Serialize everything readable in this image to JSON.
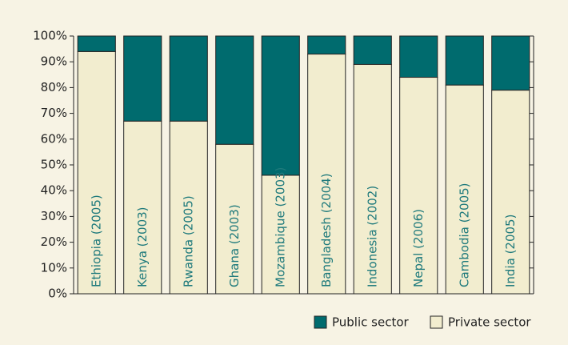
{
  "chart_data": {
    "type": "stacked_bar",
    "categories": [
      "Ethiopia (2005)",
      "Kenya (2003)",
      "Rwanda (2005)",
      "Ghana (2003)",
      "Mozambique (2003)",
      "Bangladesh (2004)",
      "Indonesia (2002)",
      "Nepal (2006)",
      "Cambodia (2005)",
      "India (2005)"
    ],
    "series": [
      {
        "name": "Public sector",
        "color": "#006b6e",
        "values": [
          6,
          33,
          33,
          42,
          54,
          7,
          11,
          16,
          19,
          21
        ]
      },
      {
        "name": "Private sector",
        "color": "#f2edcf",
        "values": [
          94,
          67,
          67,
          58,
          46,
          93,
          89,
          84,
          81,
          79
        ]
      }
    ],
    "ylim": [
      0,
      100
    ],
    "yticks": [
      {
        "value": 0,
        "label": "0%"
      },
      {
        "value": 10,
        "label": "10%"
      },
      {
        "value": 20,
        "label": "20%"
      },
      {
        "value": 30,
        "label": "30%"
      },
      {
        "value": 40,
        "label": "40%"
      },
      {
        "value": 50,
        "label": "50%"
      },
      {
        "value": 60,
        "label": "60%"
      },
      {
        "value": 70,
        "label": "70%"
      },
      {
        "value": 80,
        "label": "80%"
      },
      {
        "value": 90,
        "label": "90%"
      },
      {
        "value": 100,
        "label": "100%"
      }
    ],
    "legend": "bottom-right"
  }
}
